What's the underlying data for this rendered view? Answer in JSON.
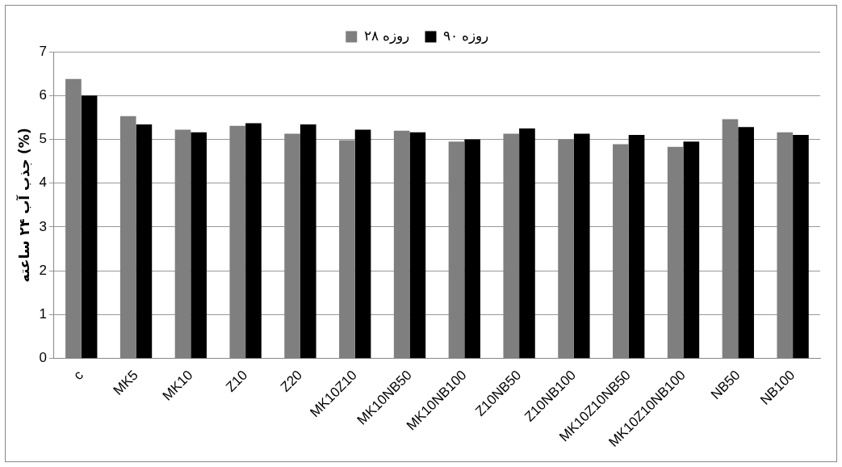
{
  "chart_data": {
    "type": "bar",
    "ylabel": "جذب آب ۲۴ ساعته (%)",
    "categories": [
      "c",
      "MK5",
      "MK10",
      "Z10",
      "Z20",
      "MK10Z10",
      "MK10NB50",
      "MK10NB100",
      "Z10NB50",
      "Z10NB100",
      "MK10Z10NB50",
      "MK10Z10NB100",
      "NB50",
      "NB100"
    ],
    "series": [
      {
        "name": "۲۸ روزه",
        "color": "#7f7f7f",
        "values": [
          6.38,
          5.53,
          5.22,
          5.31,
          5.13,
          4.98,
          5.2,
          4.95,
          5.13,
          5.0,
          4.89,
          4.83,
          5.46,
          5.16
        ]
      },
      {
        "name": "۹۰ روزه",
        "color": "#000000",
        "values": [
          6.0,
          5.34,
          5.16,
          5.37,
          5.34,
          5.22,
          5.16,
          5.0,
          5.25,
          5.13,
          5.1,
          4.95,
          5.28,
          5.1
        ]
      }
    ],
    "ylim": [
      0,
      7
    ],
    "yticks": [
      0,
      1,
      2,
      3,
      4,
      5,
      6,
      7
    ],
    "grid": "y",
    "legend": "top"
  }
}
